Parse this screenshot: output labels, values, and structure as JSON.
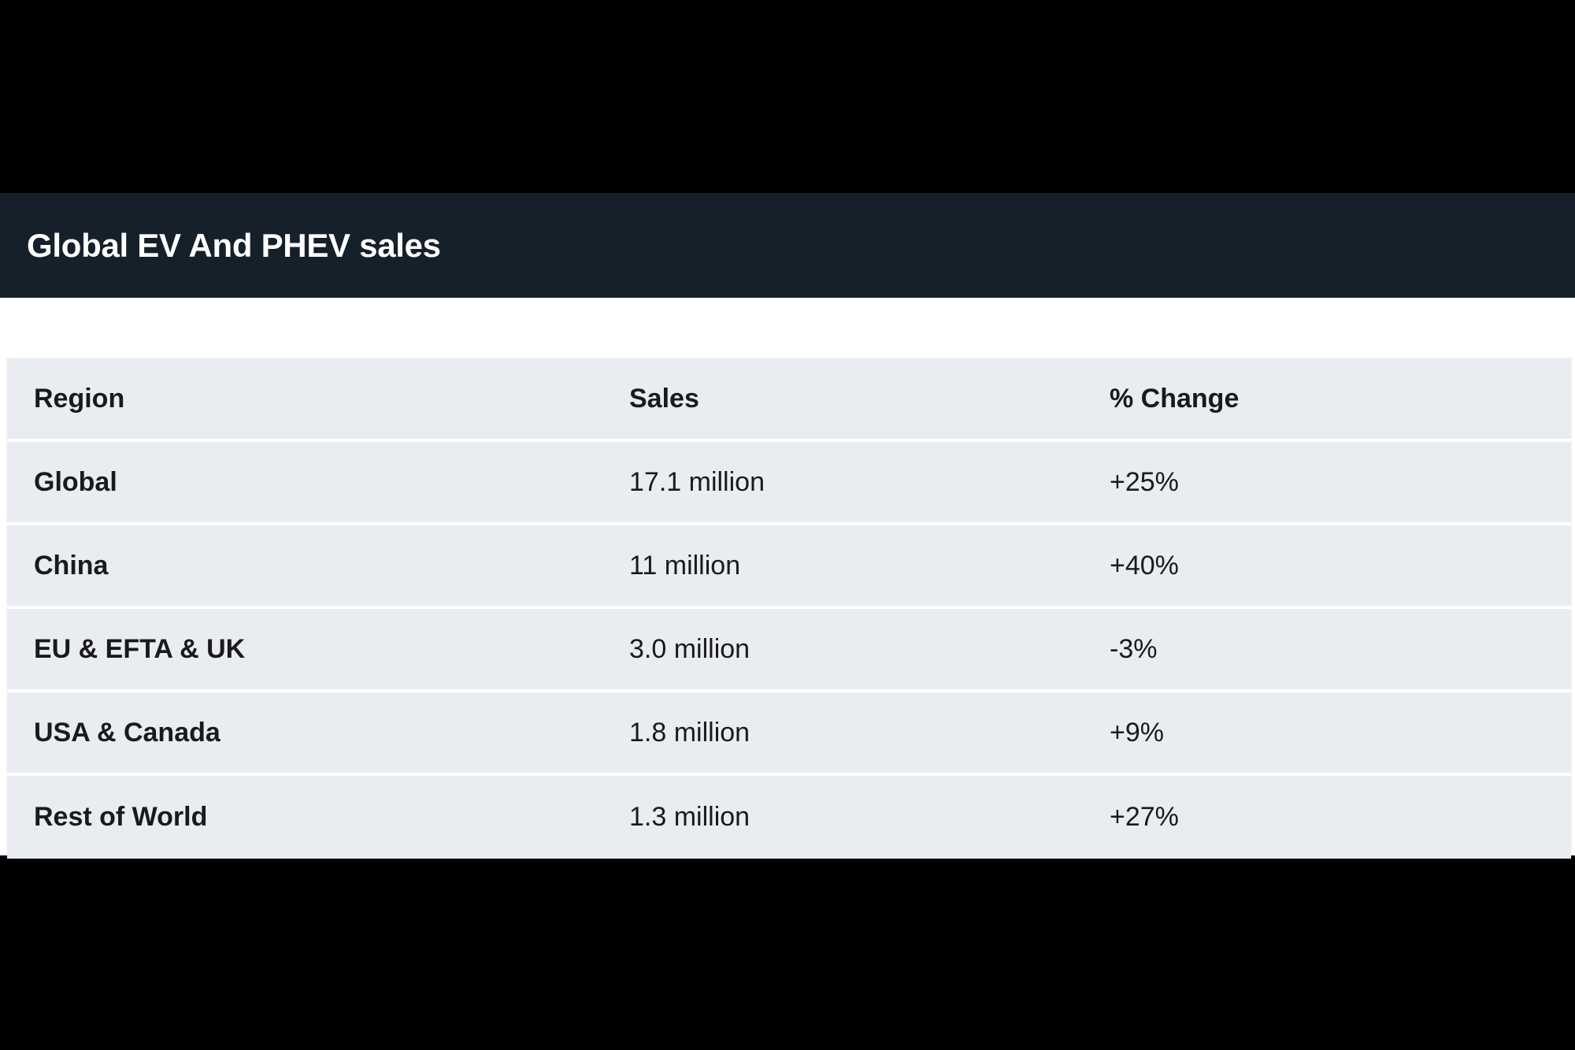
{
  "chart_data": {
    "type": "table",
    "title": "Global EV And PHEV sales",
    "columns": [
      "Region",
      "Sales",
      "% Change"
    ],
    "rows": [
      [
        "Global",
        "17.1 million",
        "+25%"
      ],
      [
        "China",
        "11 million",
        "+40%"
      ],
      [
        "EU & EFTA & UK",
        "3.0 million",
        "-3%"
      ],
      [
        "USA & Canada",
        "1.8 million",
        "+9%"
      ],
      [
        "Rest of World",
        "1.3 million",
        "+27%"
      ]
    ]
  },
  "colors": {
    "header_bar": "#16202a",
    "row_background": "#e9ecf1",
    "row_separator": "#ffffff"
  }
}
